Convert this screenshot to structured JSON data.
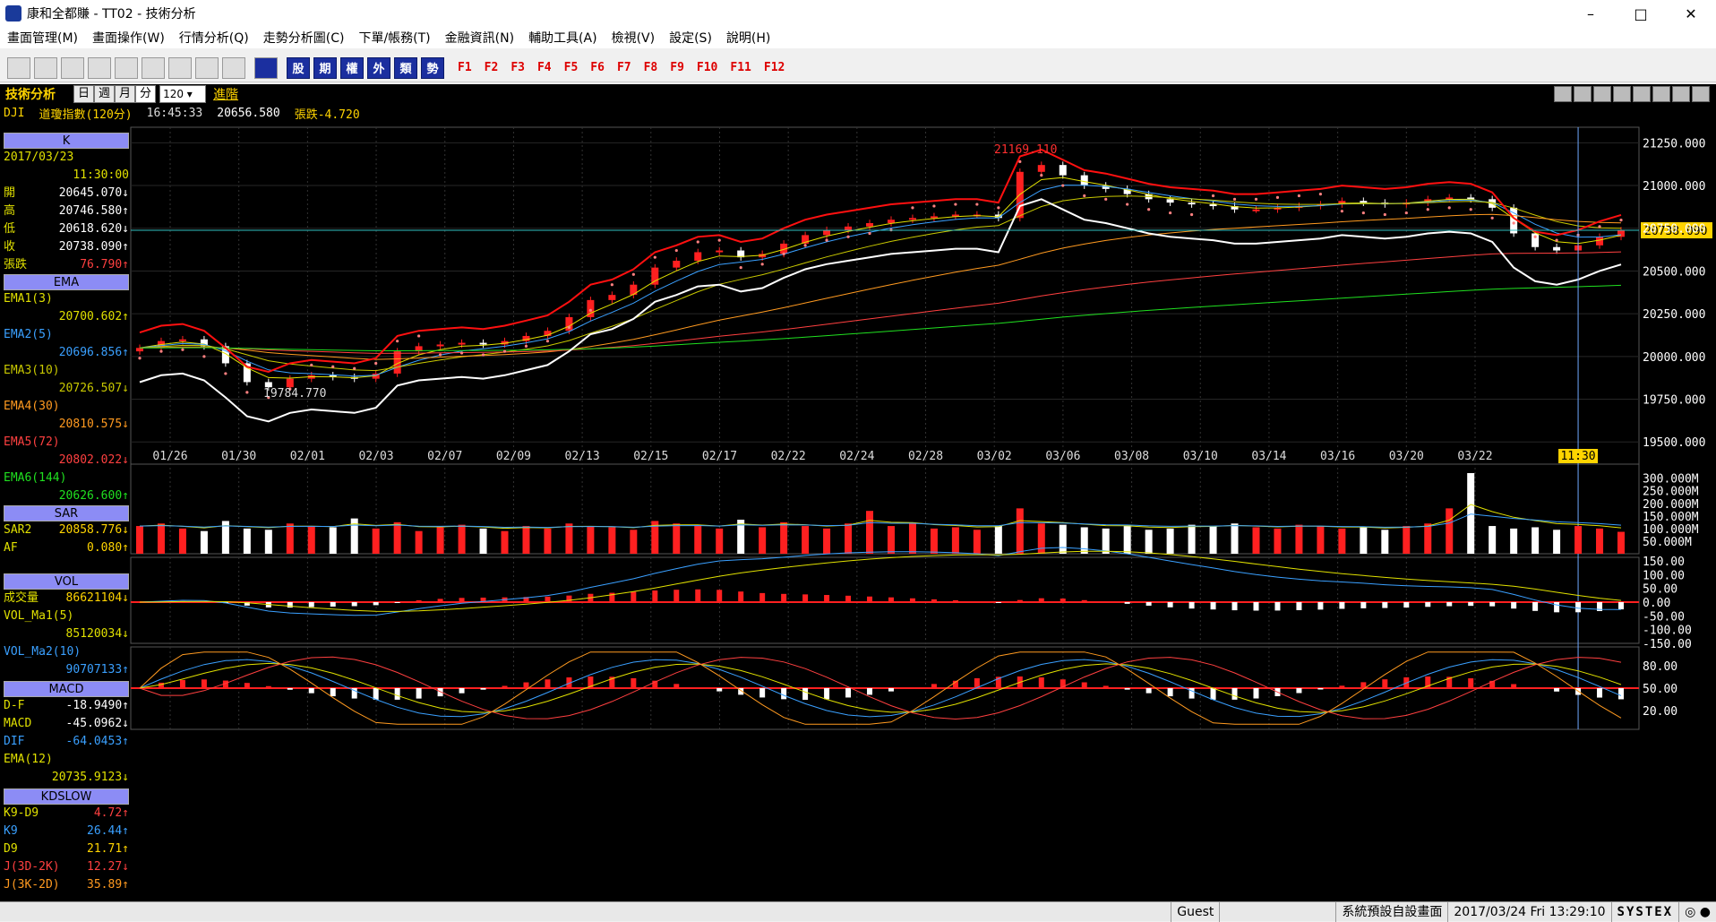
{
  "window": {
    "title": "康和全都賺 - TT02 - 技術分析",
    "minimize": "–",
    "maximize": "□",
    "close": "✕"
  },
  "menu": [
    "畫面管理(M)",
    "畫面操作(W)",
    "行情分析(Q)",
    "走勢分析圖(C)",
    "下單/帳務(T)",
    "金融資訊(N)",
    "輔助工具(A)",
    "檢視(V)",
    "設定(S)",
    "說明(H)"
  ],
  "toolbar": {
    "blue_buttons": [
      "股",
      "期",
      "權",
      "外",
      "類",
      "勢"
    ],
    "fkeys": [
      "F1",
      "F2",
      "F3",
      "F4",
      "F5",
      "F6",
      "F7",
      "F8",
      "F9",
      "F10",
      "F11",
      "F12"
    ]
  },
  "header": {
    "section": "技術分析",
    "periods": [
      "日",
      "週",
      "月",
      "分"
    ],
    "active_period": "分",
    "count": "120",
    "advanced": "進階",
    "symbol": "DJI",
    "name": "道瓊指數(120分)",
    "time": "16:45:33",
    "price": "20656.580",
    "change": "張跌-4.720"
  },
  "k_panel": {
    "title": "K",
    "date": "2017/03/23",
    "time": "11:30:00",
    "rows": [
      {
        "k": "開",
        "v": "20645.070↓"
      },
      {
        "k": "高",
        "v": "20746.580↑"
      },
      {
        "k": "低",
        "v": "20618.620↓"
      },
      {
        "k": "收",
        "v": "20738.090↑"
      },
      {
        "k": "張跌",
        "v": "76.790↑"
      }
    ]
  },
  "ema_panel": {
    "title": "EMA",
    "rows": [
      {
        "k": "EMA1(3)",
        "v": "20700.602↑"
      },
      {
        "k": "EMA2(5)",
        "v": "20696.856↑"
      },
      {
        "k": "EMA3(10)",
        "v": "20726.507↓"
      },
      {
        "k": "EMA4(30)",
        "v": "20810.575↓"
      },
      {
        "k": "EMA5(72)",
        "v": "20802.022↓"
      },
      {
        "k": "EMA6(144)",
        "v": "20626.600↑"
      }
    ]
  },
  "sar_panel": {
    "title": "SAR",
    "rows": [
      {
        "k": "SAR2",
        "v": "20858.776↓"
      },
      {
        "k": "AF",
        "v": "0.080↑"
      }
    ]
  },
  "vol_panel": {
    "title": "VOL",
    "rows": [
      {
        "k": "成交量",
        "v": "86621104↓"
      },
      {
        "k": "VOL_Ma1(5)",
        "v": ""
      },
      {
        "k": "",
        "v": "85120034↓"
      },
      {
        "k": "VOL_Ma2(10)",
        "v": ""
      },
      {
        "k": "",
        "v": "90707133↑"
      }
    ]
  },
  "macd_panel": {
    "title": "MACD",
    "rows": [
      {
        "k": "D-F",
        "v": "-18.9490↑"
      },
      {
        "k": "MACD",
        "v": "-45.0962↓"
      },
      {
        "k": "DIF",
        "v": "-64.0453↑"
      },
      {
        "k": "EMA(12)",
        "v": ""
      },
      {
        "k": "",
        "v": "20735.9123↓"
      }
    ]
  },
  "kd_panel": {
    "title": "KDSLOW",
    "rows": [
      {
        "k": "K9-D9",
        "v": "4.72↑"
      },
      {
        "k": "K9",
        "v": "26.44↑"
      },
      {
        "k": "D9",
        "v": "21.71↑"
      },
      {
        "k": "J(3D-2K)",
        "v": "12.27↓"
      },
      {
        "k": "J(3K-2D)",
        "v": "35.89↑"
      }
    ]
  },
  "chart_data": {
    "type": "candlestick",
    "price_axis": [
      "21250.000",
      "21000.000",
      "20750.000",
      "20500.000",
      "20250.000",
      "20000.000",
      "19750.000",
      "19500.000"
    ],
    "ylim": [
      19475,
      21320
    ],
    "dates": [
      "01/26",
      "01/30",
      "02/01",
      "02/03",
      "02/07",
      "02/09",
      "02/13",
      "02/15",
      "02/17",
      "02/22",
      "02/24",
      "02/28",
      "03/02",
      "03/06",
      "03/08",
      "03/10",
      "03/14",
      "03/16",
      "03/20",
      "03/22"
    ],
    "cursor_time": "11:30",
    "current_price_label": "20738.090",
    "high_label": "21169.110",
    "low_label": "19784.770",
    "close_series": [
      20050,
      20090,
      20100,
      20060,
      19960,
      19850,
      19820,
      19870,
      19890,
      19880,
      19870,
      19900,
      20030,
      20060,
      20070,
      20080,
      20070,
      20090,
      20120,
      20150,
      20230,
      20330,
      20360,
      20420,
      20520,
      20560,
      20610,
      20620,
      20580,
      20600,
      20660,
      20710,
      20740,
      20760,
      20780,
      20800,
      20810,
      20820,
      20830,
      20830,
      20810,
      21080,
      21120,
      21060,
      21000,
      20980,
      20950,
      20920,
      20900,
      20890,
      20880,
      20860,
      20860,
      20870,
      20880,
      20890,
      20910,
      20900,
      20890,
      20900,
      20920,
      20930,
      20920,
      20870,
      20720,
      20640,
      20620,
      20650,
      20700,
      20738
    ],
    "volume_axis": [
      "300.000M",
      "250.000M",
      "200.000M",
      "150.000M",
      "100.000M",
      "50.000M"
    ],
    "volume": [
      110,
      120,
      100,
      90,
      130,
      100,
      95,
      120,
      110,
      105,
      140,
      100,
      125,
      90,
      105,
      115,
      100,
      90,
      110,
      100,
      120,
      110,
      105,
      95,
      130,
      120,
      115,
      100,
      135,
      105,
      125,
      110,
      100,
      120,
      170,
      110,
      120,
      100,
      105,
      95,
      110,
      180,
      120,
      115,
      105,
      100,
      110,
      95,
      100,
      115,
      110,
      120,
      105,
      100,
      115,
      110,
      100,
      105,
      95,
      110,
      120,
      180,
      320,
      110,
      100,
      105,
      95,
      110,
      100,
      87
    ],
    "macd_axis": [
      "150.00",
      "100.00",
      "50.00",
      "0.00",
      "-50.00",
      "-100.00",
      "-150.00"
    ],
    "kd_axis": [
      "80.00",
      "50.00",
      "20.00"
    ]
  },
  "status": {
    "user": "Guest",
    "screen": "系統預設自設畫面",
    "datetime": "2017/03/24 Fri 13:29:10",
    "brand": "SYSTEX"
  }
}
